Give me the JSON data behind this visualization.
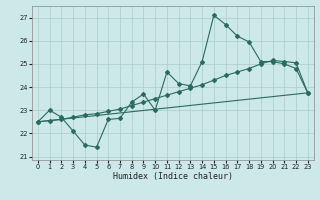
{
  "bg_color": "#cce8e8",
  "grid_color": "#aacccc",
  "line_color": "#2a6b60",
  "xlabel": "Humidex (Indice chaleur)",
  "xlim": [
    -0.5,
    23.5
  ],
  "ylim": [
    20.85,
    27.5
  ],
  "yticks": [
    21,
    22,
    23,
    24,
    25,
    26,
    27
  ],
  "xticks": [
    0,
    1,
    2,
    3,
    4,
    5,
    6,
    7,
    8,
    9,
    10,
    11,
    12,
    13,
    14,
    15,
    16,
    17,
    18,
    19,
    20,
    21,
    22,
    23
  ],
  "line1_x": [
    0,
    1,
    2,
    3,
    4,
    5,
    6,
    7,
    8,
    9,
    10,
    11,
    12,
    13,
    14,
    15,
    16,
    17,
    18,
    19,
    20,
    21,
    22,
    23
  ],
  "line1_y": [
    22.5,
    23.0,
    22.7,
    22.1,
    21.5,
    21.4,
    22.6,
    22.65,
    23.35,
    23.7,
    23.0,
    24.65,
    24.15,
    24.05,
    25.1,
    27.1,
    26.7,
    26.2,
    25.95,
    25.1,
    25.1,
    25.0,
    24.8,
    23.75
  ],
  "line2_x": [
    0,
    1,
    2,
    3,
    4,
    5,
    6,
    7,
    8,
    9,
    10,
    11,
    12,
    13,
    14,
    15,
    16,
    17,
    18,
    19,
    20,
    21,
    22,
    23
  ],
  "line2_y": [
    22.5,
    22.55,
    22.6,
    22.7,
    22.8,
    22.85,
    22.95,
    23.05,
    23.2,
    23.35,
    23.5,
    23.65,
    23.8,
    23.95,
    24.1,
    24.3,
    24.5,
    24.65,
    24.8,
    25.0,
    25.15,
    25.1,
    25.05,
    23.75
  ],
  "line3_x": [
    0,
    23
  ],
  "line3_y": [
    22.5,
    23.75
  ]
}
